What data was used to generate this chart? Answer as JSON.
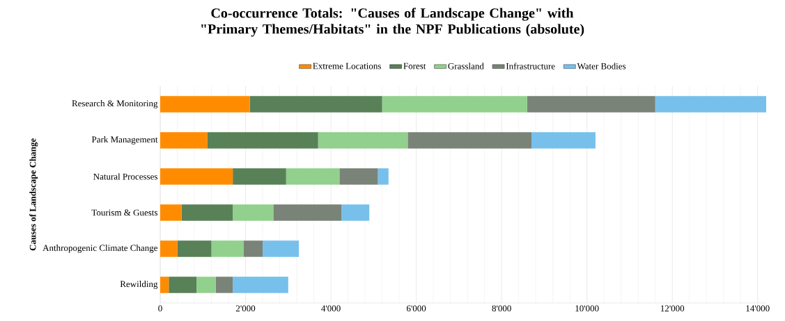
{
  "chart_data": {
    "type": "bar",
    "orientation": "horizontal",
    "stacked": true,
    "title": "Co-occurrence Totals: \"Causes of Landscape Change\" with \"Primary Themes/Habitats\" in the NPF Publications (absolute)",
    "ylabel": "Causes of Landscape Change",
    "categories": [
      "Research & Monitoring",
      "Park Management",
      "Natural Processes",
      "Tourism & Guests",
      "Anthropogenic Climate Change",
      "Rewilding"
    ],
    "series": [
      {
        "name": "Extreme Locations",
        "color": "#ff8c00",
        "values": [
          2100,
          1100,
          1700,
          500,
          400,
          200
        ]
      },
      {
        "name": "Forest",
        "color": "#588157",
        "values": [
          3100,
          2600,
          1250,
          1200,
          800,
          650
        ]
      },
      {
        "name": "Grassland",
        "color": "#92d08d",
        "values": [
          3400,
          2100,
          1250,
          950,
          750,
          450
        ]
      },
      {
        "name": "Infrastructure",
        "color": "#7a8377",
        "values": [
          3000,
          2900,
          900,
          1600,
          450,
          400
        ]
      },
      {
        "name": "Water Bodies",
        "color": "#77c0ec",
        "values": [
          2600,
          1500,
          250,
          650,
          850,
          1300
        ]
      }
    ],
    "xlim": [
      0,
      14200
    ],
    "xticks": [
      0,
      {
        "value": 2000,
        "label": "2'000"
      },
      {
        "value": 4000,
        "label": "4'000"
      },
      {
        "value": 6000,
        "label": "6'000"
      },
      {
        "value": 8000,
        "label": "8'000"
      },
      {
        "value": 10000,
        "label": "10'000"
      },
      {
        "value": 12000,
        "label": "12'000"
      },
      {
        "value": 14000,
        "label": "14'000"
      }
    ],
    "grid": "x",
    "legend": "top"
  }
}
